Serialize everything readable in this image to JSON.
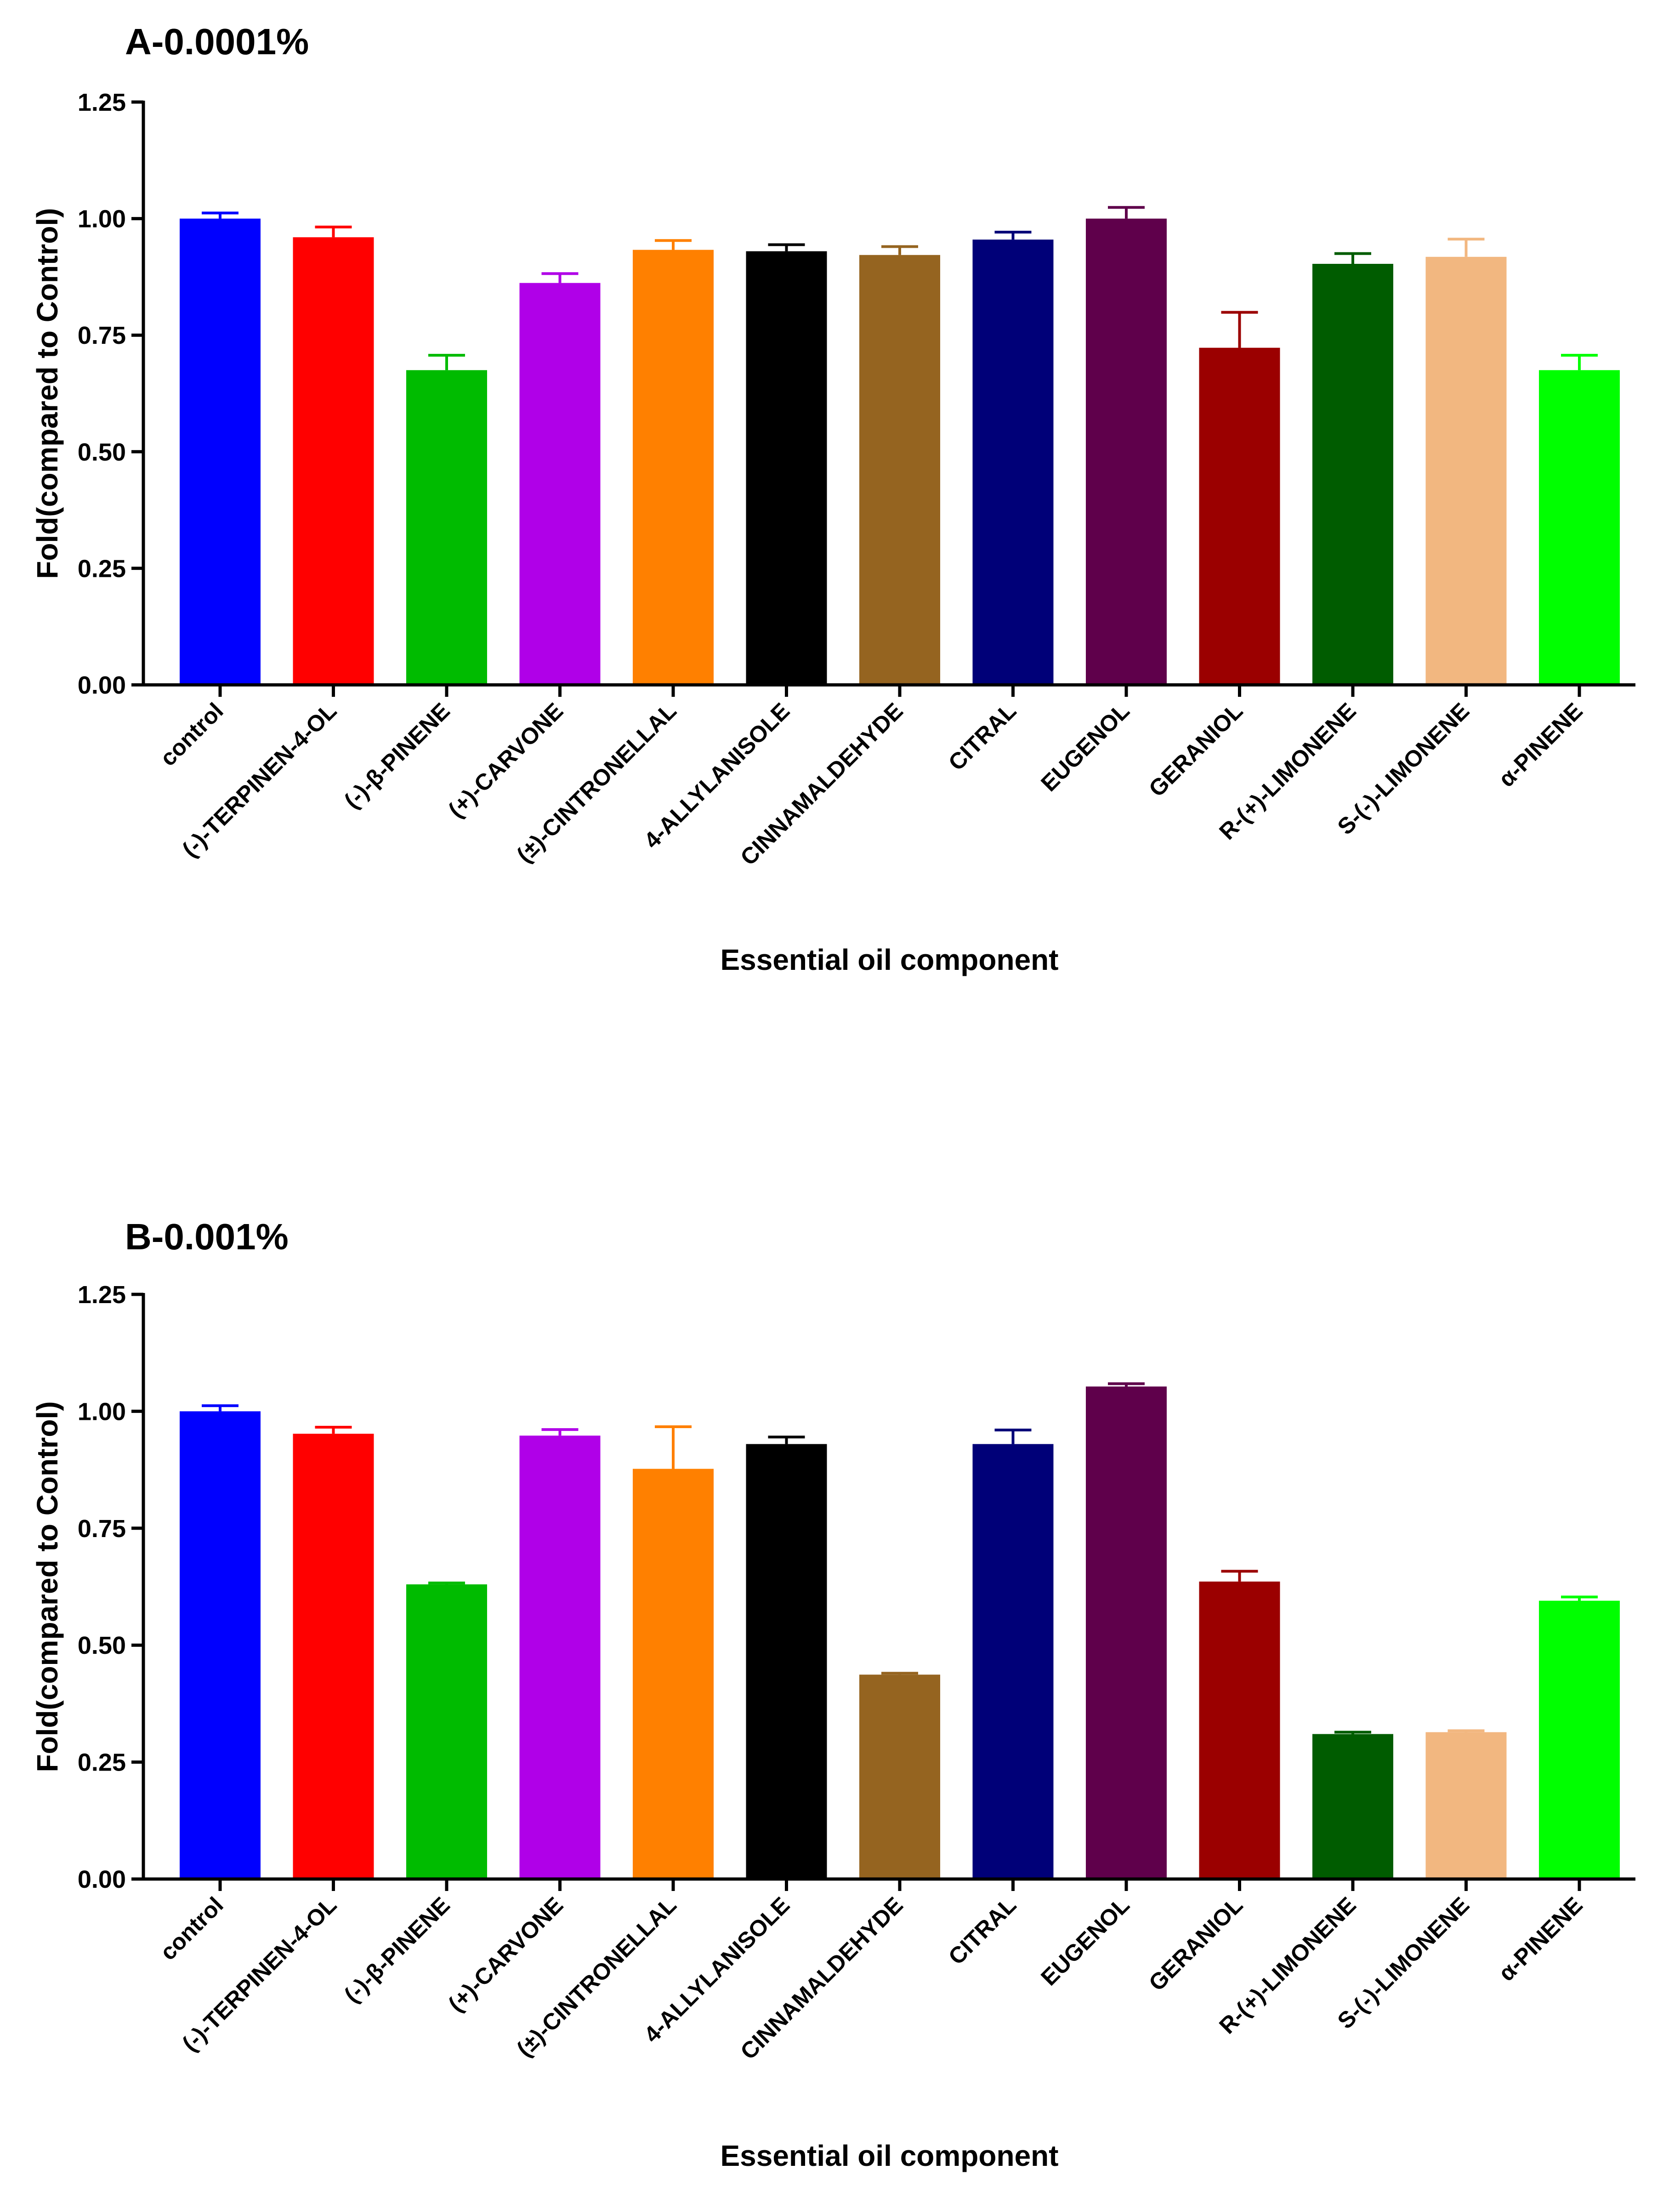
{
  "chart_data": [
    {
      "type": "bar",
      "title": "A-0.0001%",
      "xlabel": "Essential oil component",
      "ylabel": "Fold(compared to Control)",
      "ylim": [
        0,
        1.25
      ],
      "yticks": [
        0.0,
        0.25,
        0.5,
        0.75,
        1.0,
        1.25
      ],
      "ytick_labels": [
        "0.00",
        "0.25",
        "0.50",
        "0.75",
        "1.00",
        "1.25"
      ],
      "grid": false,
      "categories": [
        "control",
        "(-)-TERPINEN-4-OL",
        "(-)-β-PINENE",
        "(+)-CARVONE",
        "(±)-CINTRONELLAL",
        "4-ALLYLANISOLE",
        "CINNAMALDEHYDE",
        "CITRAL",
        "EUGENOL",
        "GERANIOL",
        "R-(+)-LIMONENE",
        "S-(-)-LIMONENE",
        "α-PINENE"
      ],
      "values": [
        1.0,
        0.96,
        0.675,
        0.862,
        0.933,
        0.93,
        0.922,
        0.955,
        1.0,
        0.723,
        0.903,
        0.918,
        0.675
      ],
      "errors": [
        0.012,
        0.022,
        0.032,
        0.02,
        0.02,
        0.014,
        0.018,
        0.016,
        0.024,
        0.076,
        0.022,
        0.038,
        0.032
      ],
      "colors": [
        "#0000ff",
        "#ff0000",
        "#00bb00",
        "#b000e8",
        "#ff8000",
        "#000000",
        "#956420",
        "#000078",
        "#5f004b",
        "#9b0000",
        "#005c00",
        "#f2b780",
        "#00ff00"
      ]
    },
    {
      "type": "bar",
      "title": "B-0.001%",
      "xlabel": "Essential oil component",
      "ylabel": "Fold(compared to Control)",
      "ylim": [
        0,
        1.25
      ],
      "yticks": [
        0.0,
        0.25,
        0.5,
        0.75,
        1.0,
        1.25
      ],
      "ytick_labels": [
        "0.00",
        "0.25",
        "0.50",
        "0.75",
        "1.00",
        "1.25"
      ],
      "grid": false,
      "categories": [
        "control",
        "(-)-TERPINEN-4-OL",
        "(-)-β-PINENE",
        "(+)-CARVONE",
        "(±)-CINTRONELLAL",
        "4-ALLYLANISOLE",
        "CINNAMALDEHYDE",
        "CITRAL",
        "EUGENOL",
        "GERANIOL",
        "R-(+)-LIMONENE",
        "S-(-)-LIMONENE",
        "α-PINENE"
      ],
      "values": [
        1.0,
        0.952,
        0.63,
        0.948,
        0.877,
        0.93,
        0.437,
        0.93,
        1.053,
        0.636,
        0.31,
        0.314,
        0.595
      ],
      "errors": [
        0.012,
        0.014,
        0.003,
        0.013,
        0.09,
        0.015,
        0.003,
        0.03,
        0.006,
        0.022,
        0.004,
        0.003,
        0.008
      ],
      "colors": [
        "#0000ff",
        "#ff0000",
        "#00bb00",
        "#b000e8",
        "#ff8000",
        "#000000",
        "#956420",
        "#000078",
        "#5f004b",
        "#9b0000",
        "#005c00",
        "#f2b780",
        "#00ff00"
      ]
    }
  ]
}
